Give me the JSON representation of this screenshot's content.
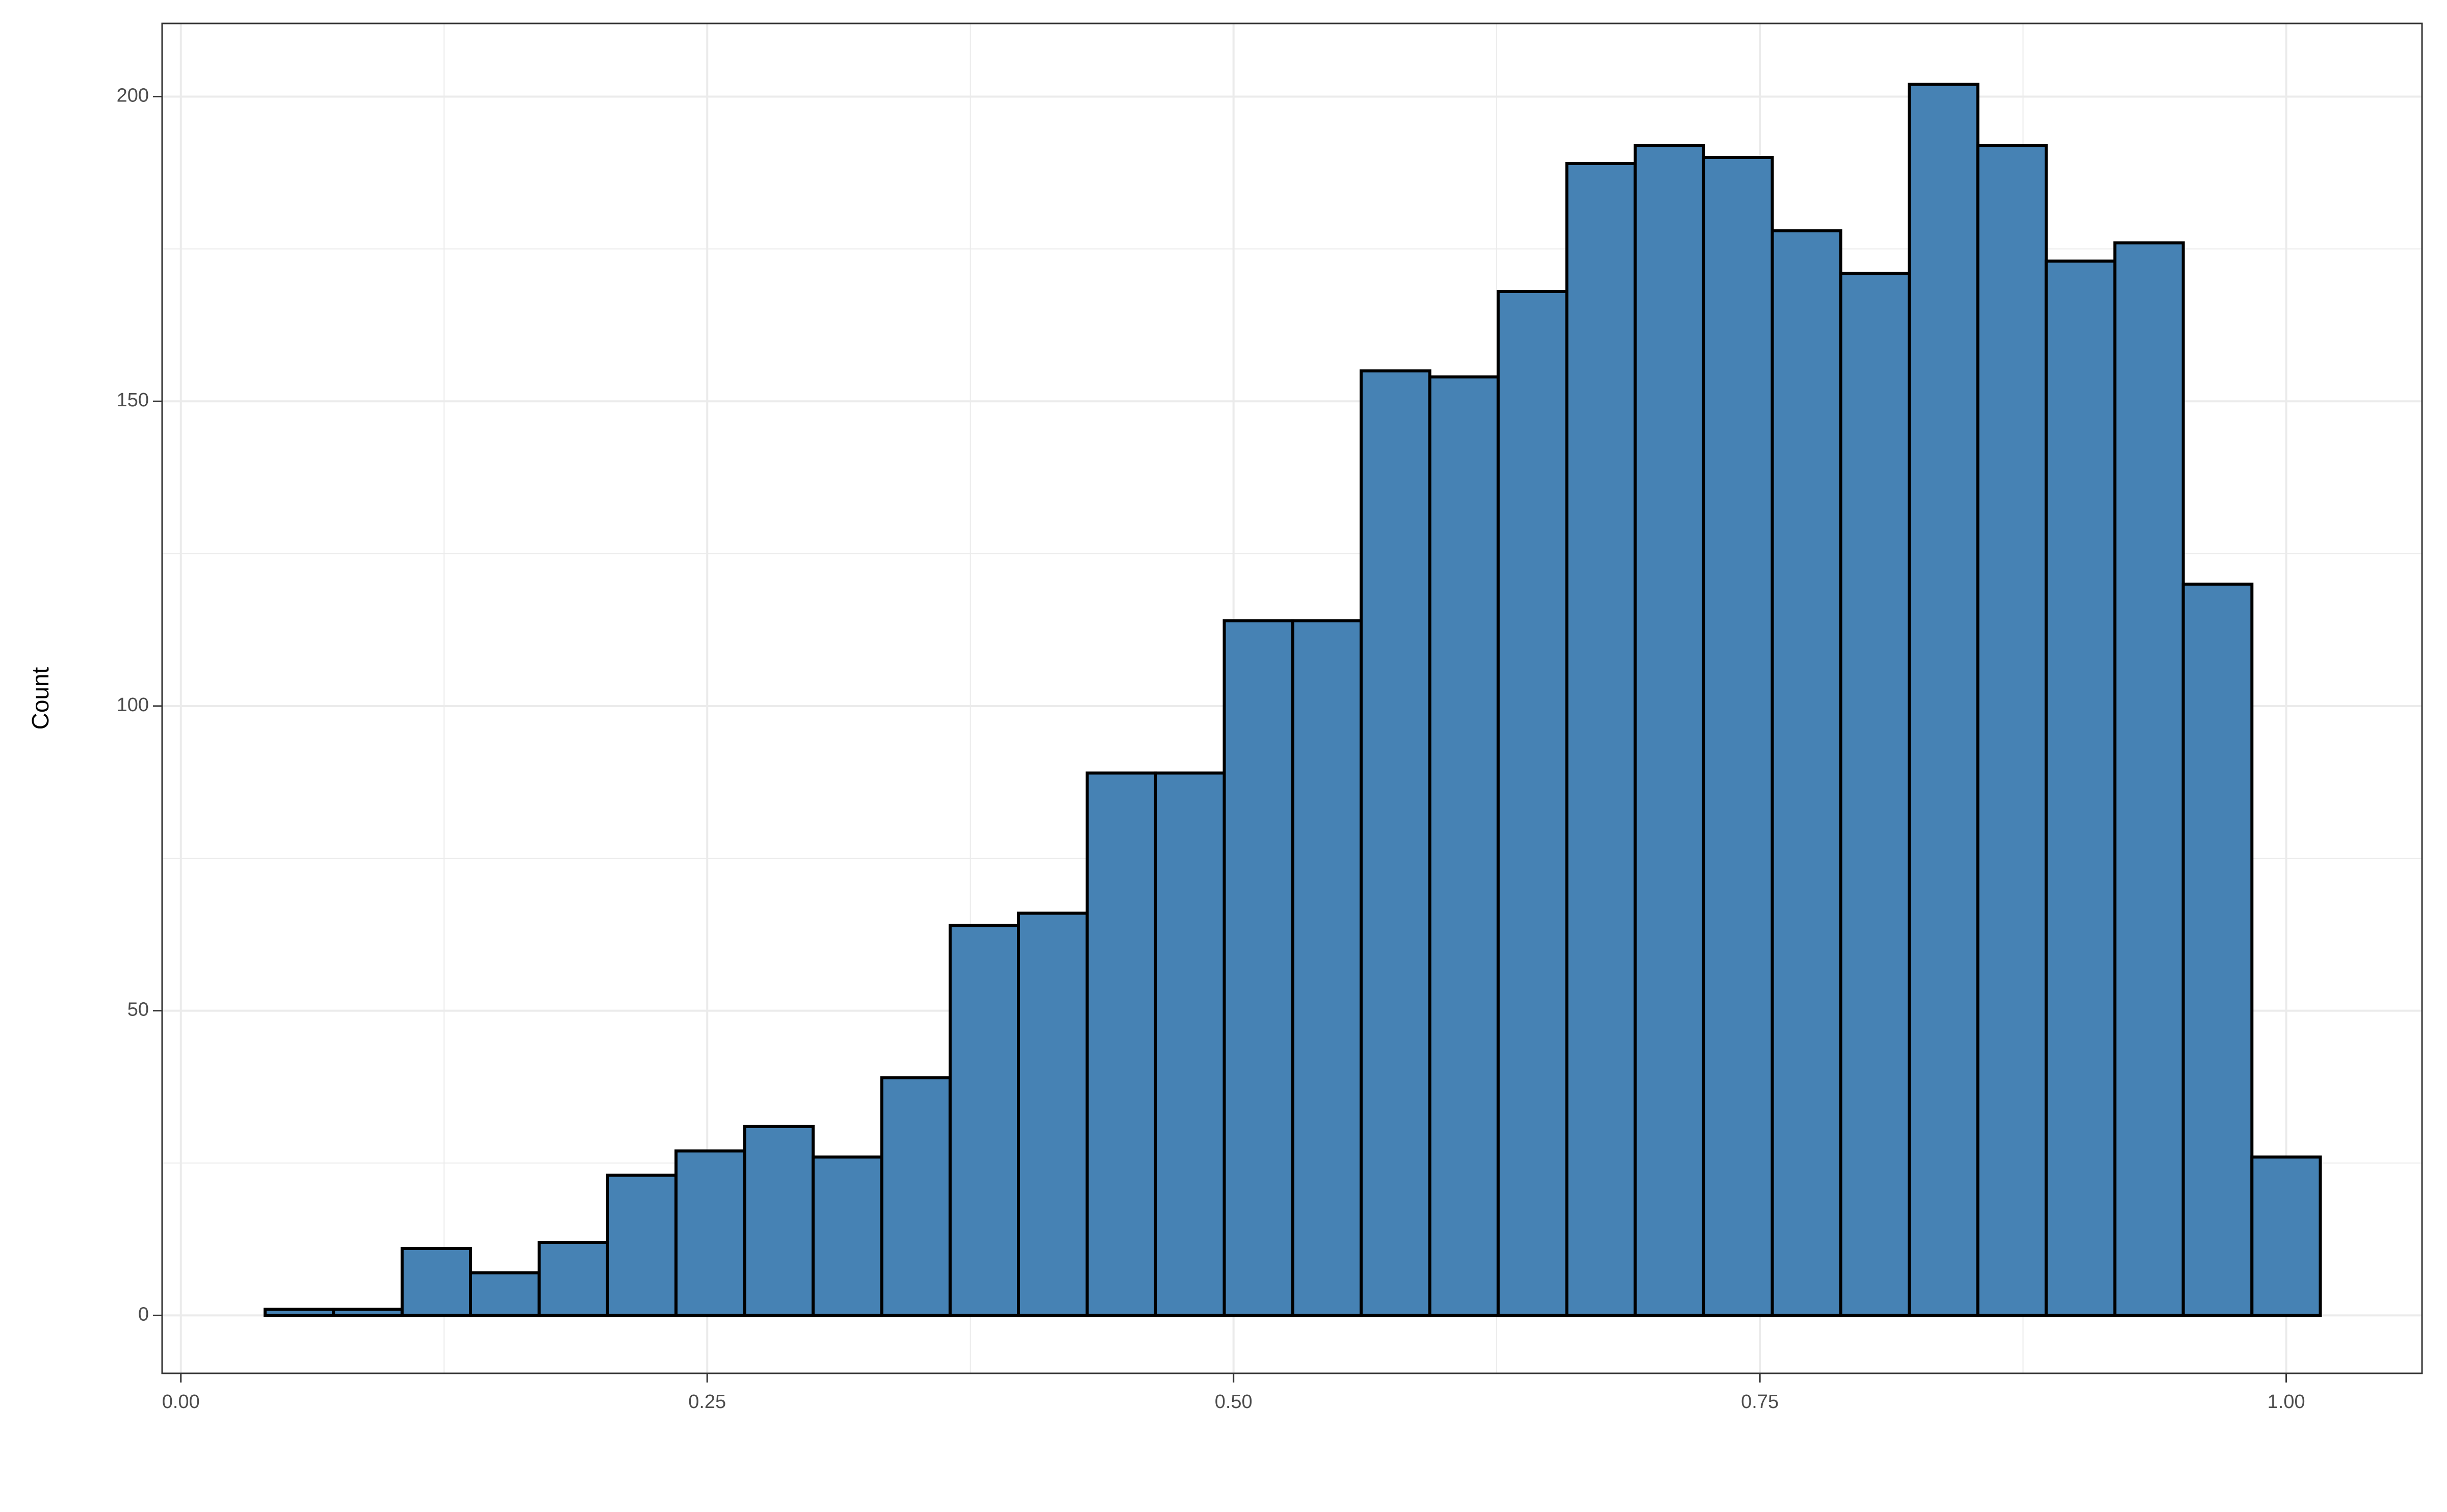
{
  "chart_data": {
    "type": "histogram",
    "y_label": "Count",
    "bins": [
      0.04,
      0.0725,
      0.1051,
      0.1376,
      0.1702,
      0.2027,
      0.2352,
      0.2678,
      0.3003,
      0.3329,
      0.3654,
      0.3979,
      0.4305,
      0.463,
      0.4956,
      0.5281,
      0.5606,
      0.5932,
      0.6257,
      0.6583,
      0.6908,
      0.7233,
      0.7559,
      0.7884,
      0.821,
      0.8535,
      0.886,
      0.9186,
      0.9511,
      0.9837,
      1.0162
    ],
    "values": [
      1,
      1,
      11,
      7,
      12,
      23,
      27,
      31,
      26,
      39,
      64,
      66,
      89,
      89,
      114,
      114,
      155,
      154,
      168,
      189,
      192,
      190,
      178,
      171,
      202,
      192,
      173,
      176,
      120,
      26
    ],
    "color": "#4682b4",
    "edge_color": "#000000",
    "xlim": [
      -0.0089,
      1.0645
    ],
    "ylim": [
      -9.5,
      212
    ],
    "xticks": [
      {
        "value": 0,
        "label": "0.00"
      },
      {
        "value": 0.25,
        "label": "0.25"
      },
      {
        "value": 0.5,
        "label": "0.50"
      },
      {
        "value": 0.75,
        "label": "0.75"
      },
      {
        "value": 1,
        "label": "1.00"
      }
    ],
    "yticks": [
      0,
      50,
      100,
      150,
      200
    ],
    "grid": true
  }
}
